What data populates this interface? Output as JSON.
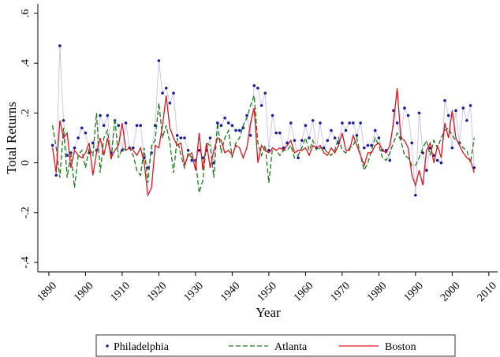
{
  "chart_data": {
    "type": "line",
    "y_label": "Total Returns",
    "x_label": "Year",
    "x": [
      1891,
      1892,
      1893,
      1894,
      1895,
      1896,
      1897,
      1898,
      1899,
      1900,
      1901,
      1902,
      1903,
      1904,
      1905,
      1906,
      1907,
      1908,
      1909,
      1910,
      1911,
      1912,
      1913,
      1914,
      1915,
      1916,
      1917,
      1918,
      1919,
      1920,
      1921,
      1922,
      1923,
      1924,
      1925,
      1926,
      1927,
      1928,
      1929,
      1930,
      1931,
      1932,
      1933,
      1934,
      1935,
      1936,
      1937,
      1938,
      1939,
      1940,
      1941,
      1942,
      1943,
      1944,
      1945,
      1946,
      1947,
      1948,
      1949,
      1950,
      1951,
      1952,
      1953,
      1954,
      1955,
      1956,
      1957,
      1958,
      1959,
      1960,
      1961,
      1962,
      1963,
      1964,
      1965,
      1966,
      1967,
      1968,
      1969,
      1970,
      1971,
      1972,
      1973,
      1974,
      1975,
      1976,
      1977,
      1978,
      1979,
      1980,
      1981,
      1982,
      1983,
      1984,
      1985,
      1986,
      1987,
      1988,
      1989,
      1990,
      1991,
      1992,
      1993,
      1994,
      1995,
      1996,
      1997,
      1998,
      1999,
      2000,
      2001,
      2002,
      2003,
      2004,
      2005,
      2006
    ],
    "series": [
      {
        "name": "Philadelphia",
        "color": "#1a1a9c",
        "line_color": "#c8c8ee",
        "marker": true,
        "dash": false,
        "values": [
          0.07,
          -0.05,
          0.47,
          0.17,
          0.03,
          0.04,
          0.06,
          0.1,
          0.14,
          0.12,
          0.04,
          0.08,
          0.05,
          0.19,
          0.15,
          0.19,
          0.04,
          0.17,
          0.15,
          0.05,
          0.16,
          0.06,
          0.06,
          0.15,
          0.15,
          0.02,
          -0.02,
          0.04,
          0.15,
          0.41,
          0.28,
          0.3,
          0.24,
          0.28,
          0.11,
          0.1,
          0.1,
          0.05,
          0.01,
          0.01,
          0.05,
          0.02,
          0.05,
          0.1,
          0.0,
          0.16,
          0.15,
          0.18,
          0.16,
          0.15,
          0.13,
          0.13,
          0.14,
          0.19,
          0.11,
          0.31,
          0.3,
          0.23,
          0.28,
          0.05,
          0.19,
          0.12,
          0.12,
          0.06,
          0.08,
          0.16,
          0.09,
          0.02,
          0.09,
          0.15,
          0.1,
          0.17,
          0.06,
          0.16,
          0.06,
          0.09,
          0.13,
          0.1,
          0.08,
          0.16,
          0.13,
          0.16,
          0.16,
          0.11,
          0.16,
          0.06,
          0.07,
          0.07,
          0.13,
          0.1,
          0.05,
          0.05,
          0.01,
          0.21,
          0.16,
          0.1,
          0.22,
          0.19,
          0.08,
          -0.13,
          0.2,
          0.04,
          -0.03,
          0.06,
          0.03,
          0.01,
          0.0,
          0.25,
          0.19,
          0.06,
          0.21,
          0.08,
          0.22,
          0.17,
          0.23,
          -0.02
        ]
      },
      {
        "name": "Atlanta",
        "color": "#1a7a1a",
        "line_color": "#1a7a1a",
        "marker": false,
        "dash": true,
        "values": [
          0.15,
          0.06,
          -0.06,
          0.14,
          -0.06,
          0.04,
          -0.1,
          0.03,
          0.05,
          -0.02,
          0.06,
          0.03,
          0.2,
          -0.04,
          0.1,
          0.13,
          0.01,
          0.18,
          0.02,
          0.06,
          0.05,
          0.06,
          0.03,
          -0.03,
          -0.05,
          0.06,
          -0.08,
          0.07,
          0.09,
          0.24,
          0.1,
          0.15,
          0.08,
          -0.04,
          0.1,
          0.03,
          -0.02,
          0.04,
          0.02,
          0.01,
          -0.12,
          -0.07,
          0.08,
          0.07,
          -0.06,
          0.16,
          0.04,
          0.1,
          0.13,
          0.02,
          0.08,
          0.1,
          0.15,
          0.18,
          0.23,
          0.27,
          0.08,
          0.03,
          0.07,
          -0.08,
          0.06,
          0.05,
          0.03,
          0.05,
          0.05,
          0.07,
          0.02,
          0.03,
          0.06,
          0.1,
          0.05,
          0.09,
          0.05,
          0.06,
          0.06,
          0.04,
          0.03,
          0.05,
          0.1,
          0.05,
          0.04,
          0.06,
          0.07,
          0.1,
          0.03,
          -0.03,
          0.0,
          0.05,
          0.1,
          0.07,
          0.02,
          0.01,
          0.04,
          0.08,
          0.12,
          0.09,
          0.03,
          0.02,
          -0.01,
          -0.01,
          0.02,
          0.06,
          0.09,
          0.03,
          0.09,
          0.06,
          0.1,
          0.13,
          0.14,
          0.11,
          0.09,
          0.08,
          0.06,
          0.05,
          0.0,
          0.1
        ]
      },
      {
        "name": "Boston",
        "color": "#e0141e",
        "line_color": "#e0141e",
        "marker": false,
        "dash": false,
        "values": [
          0.06,
          -0.04,
          0.17,
          0.1,
          0.12,
          -0.02,
          0.05,
          0.03,
          0.02,
          0.04,
          0.08,
          -0.05,
          0.04,
          0.1,
          0.03,
          0.1,
          0.02,
          0.05,
          0.07,
          0.16,
          0.05,
          0.06,
          0.05,
          0.03,
          0.06,
          0.0,
          -0.13,
          -0.1,
          0.07,
          0.06,
          0.15,
          0.27,
          0.14,
          0.1,
          0.07,
          0.08,
          -0.01,
          0.03,
          0.04,
          -0.03,
          0.12,
          -0.03,
          0.08,
          -0.02,
          0.05,
          0.1,
          0.09,
          0.04,
          0.05,
          0.03,
          0.07,
          0.06,
          0.02,
          0.06,
          0.16,
          0.22,
          0.0,
          0.07,
          0.05,
          0.04,
          0.06,
          0.05,
          0.06,
          0.05,
          0.07,
          0.09,
          0.04,
          0.05,
          0.05,
          0.06,
          0.03,
          0.07,
          0.06,
          0.07,
          0.04,
          0.03,
          0.06,
          0.04,
          0.07,
          0.12,
          0.05,
          0.05,
          0.11,
          0.07,
          0.03,
          -0.01,
          0.04,
          0.04,
          0.07,
          0.08,
          0.05,
          0.04,
          0.07,
          0.16,
          0.3,
          0.1,
          0.09,
          0.06,
          -0.05,
          -0.09,
          -0.03,
          -0.09,
          0.05,
          0.08,
          0.0,
          0.07,
          0.02,
          0.16,
          0.1,
          0.21,
          0.1,
          0.07,
          0.04,
          0.02,
          0.01,
          -0.04
        ]
      }
    ],
    "xlim": [
      1887,
      2012.4
    ],
    "xticks": [
      1890,
      1900,
      1910,
      1920,
      1930,
      1940,
      1950,
      1960,
      1970,
      1980,
      1990,
      2000,
      2010
    ],
    "ylim": [
      -0.438,
      0.638
    ],
    "yticks": [
      {
        "value": -0.4,
        "label": "-.4"
      },
      {
        "value": -0.2,
        "label": "-.2"
      },
      0,
      {
        "value": 0.2,
        "label": ".2"
      },
      {
        "value": 0.4,
        "label": ".4"
      },
      {
        "value": 0.6,
        "label": ".6"
      }
    ],
    "grid": false,
    "legend": "bottom"
  }
}
